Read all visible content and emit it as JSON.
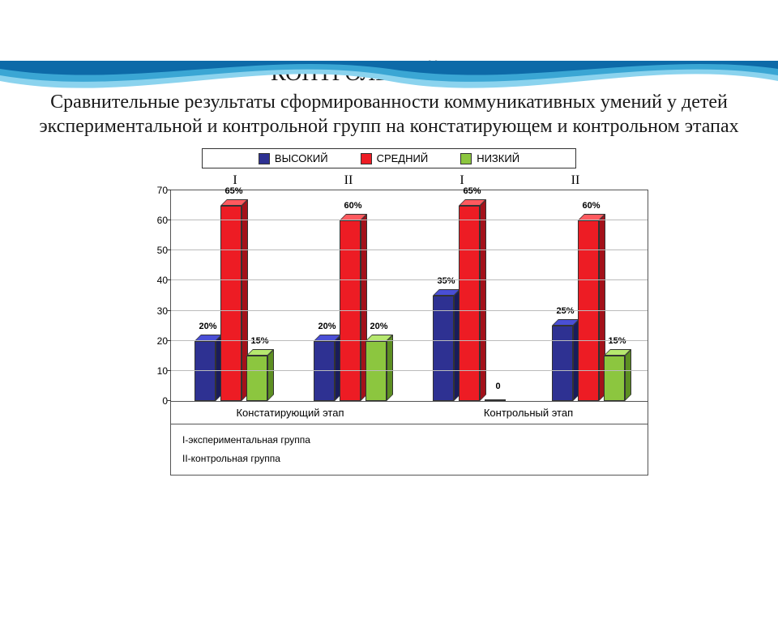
{
  "title": "КОНТРОЛЬНЫЙ ЭТАП",
  "subtitle": "Сравнительные результаты сформированности коммуникативных умений у детей экспериментальной и контрольной групп на констатирующем и контрольном этапах",
  "legend": {
    "high": {
      "label": "ВЫСОКИЙ",
      "front": "#2e3192",
      "top": "#4a4fd6",
      "side": "#1a1c5a"
    },
    "medium": {
      "label": "СРЕДНИЙ",
      "front": "#ed1c24",
      "top": "#ff5a5f",
      "side": "#a3111a"
    },
    "low": {
      "label": "НИЗКИЙ",
      "front": "#8cc63f",
      "top": "#b6e86f",
      "side": "#5d8f22"
    }
  },
  "roman": [
    "I",
    "II",
    "I",
    "II"
  ],
  "y_axis": {
    "min": 0,
    "max": 70,
    "step": 10
  },
  "groups": [
    {
      "stage": "Констатирующий этап",
      "sub": "I",
      "values": {
        "high": 20,
        "medium": 65,
        "low": 15
      },
      "labels": {
        "high": "20%",
        "medium": "65%",
        "low": "15%"
      }
    },
    {
      "stage": "Констатирующий этап",
      "sub": "II",
      "values": {
        "high": 20,
        "medium": 60,
        "low": 20
      },
      "labels": {
        "high": "20%",
        "medium": "60%",
        "low": "20%"
      }
    },
    {
      "stage": "Контрольный этап",
      "sub": "I",
      "values": {
        "high": 35,
        "medium": 65,
        "low": 0
      },
      "labels": {
        "high": "35%",
        "medium": "65%",
        "low": "0"
      }
    },
    {
      "stage": "Контрольный этап",
      "sub": "II",
      "values": {
        "high": 25,
        "medium": 60,
        "low": 15
      },
      "labels": {
        "high": "25%",
        "medium": "60%",
        "low": "15%"
      }
    }
  ],
  "stage_labels": [
    "Констатирующий этап",
    "Контрольный этап"
  ],
  "footnotes": [
    "I-экспериментальная группа",
    "II-контрольная группа"
  ],
  "wave_colors": {
    "dark": "#0d6aa8",
    "mid": "#3aa6d4",
    "light": "#8bd3ee"
  }
}
